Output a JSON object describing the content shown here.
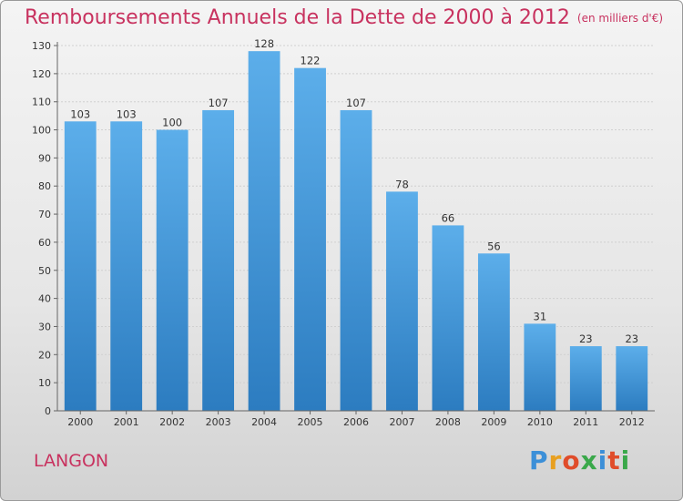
{
  "chart_data": {
    "type": "bar",
    "title": "Remboursements Annuels de la Dette de 2000 à 2012",
    "unit": "(en milliers d'€)",
    "categories": [
      "2000",
      "2001",
      "2002",
      "2003",
      "2004",
      "2005",
      "2006",
      "2007",
      "2008",
      "2009",
      "2010",
      "2011",
      "2012"
    ],
    "values": [
      103,
      103,
      100,
      107,
      128,
      122,
      107,
      78,
      66,
      56,
      31,
      23,
      23
    ],
    "ylim": [
      0,
      130
    ],
    "yticks": [
      0,
      10,
      20,
      30,
      40,
      50,
      60,
      70,
      80,
      90,
      100,
      110,
      120,
      130
    ],
    "grid": true,
    "bar_color_top": "#5caeea",
    "bar_color_bottom": "#2c7cc0"
  },
  "footer": {
    "city": "LANGON"
  },
  "logo": {
    "letters": [
      "P",
      "r",
      "o",
      "x",
      "i",
      "t",
      "i"
    ],
    "colors": [
      "#3b8fd8",
      "#e8a020",
      "#e04c2a",
      "#3aa84a",
      "#3b8fd8",
      "#e04c2a",
      "#3aa84a"
    ]
  }
}
